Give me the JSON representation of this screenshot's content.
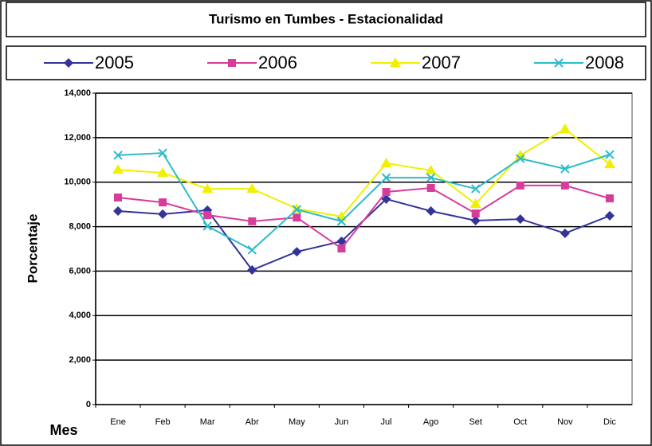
{
  "chart_data": {
    "type": "line",
    "title": "Turismo en Tumbes - Estacionalidad",
    "y_label": "Porcentaje",
    "x_label": "Mes",
    "categories": [
      "Ene",
      "Feb",
      "Mar",
      "Abr",
      "May",
      "Jun",
      "Jul",
      "Ago",
      "Set",
      "Oct",
      "Nov",
      "Dic"
    ],
    "series": [
      {
        "name": "2005",
        "color": "#333399",
        "marker": "diamond",
        "values": [
          8700,
          8560,
          8740,
          6050,
          6870,
          7340,
          9240,
          8700,
          8270,
          8340,
          7700,
          8490
        ]
      },
      {
        "name": "2006",
        "color": "#d63c9a",
        "marker": "square",
        "values": [
          9310,
          9090,
          8520,
          8240,
          8410,
          7020,
          9560,
          9740,
          8590,
          9850,
          9850,
          9270
        ]
      },
      {
        "name": "2007",
        "color": "#f0f000",
        "marker": "triangle",
        "values": [
          10560,
          10420,
          9700,
          9700,
          8810,
          8450,
          10850,
          10530,
          9020,
          11210,
          12390,
          10810
        ]
      },
      {
        "name": "2008",
        "color": "#2bbccb",
        "marker": "x",
        "values": [
          11210,
          11310,
          8020,
          6950,
          8770,
          8240,
          10200,
          10200,
          9700,
          11060,
          10600,
          11240
        ]
      }
    ],
    "ylim": [
      0,
      14000
    ],
    "yticks": [
      0,
      {
        "value": 2000,
        "label": "2,000"
      },
      {
        "value": 4000,
        "label": "4,000"
      },
      {
        "value": 6000,
        "label": "6,000"
      },
      {
        "value": 8000,
        "label": "8,000"
      },
      {
        "value": 10000,
        "label": "10,000"
      },
      {
        "value": 12000,
        "label": "12,000"
      },
      {
        "value": 14000,
        "label": "14,000"
      }
    ],
    "grid": true
  }
}
